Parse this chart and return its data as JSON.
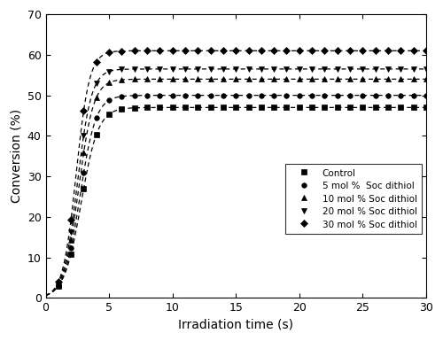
{
  "title": "",
  "xlabel": "Irradiation time (s)",
  "ylabel": "Conversion (%)",
  "xlim": [
    0,
    30
  ],
  "ylim": [
    0,
    70
  ],
  "xticks": [
    0,
    5,
    10,
    15,
    20,
    25,
    30
  ],
  "yticks": [
    0,
    10,
    20,
    30,
    40,
    50,
    60,
    70
  ],
  "series": [
    {
      "label": "Control",
      "marker": "s",
      "color": "#000000",
      "plateau": 47.0,
      "k": 1.5,
      "t0": 2.8
    },
    {
      "label": "5 mol %  Soc dithiol",
      "marker": "o",
      "color": "#000000",
      "plateau": 50.0,
      "k": 1.6,
      "t0": 2.7
    },
    {
      "label": "10 mol % Soc dithiol",
      "marker": "^",
      "color": "#000000",
      "plateau": 54.0,
      "k": 1.7,
      "t0": 2.6
    },
    {
      "label": "20 mol % Soc dithiol",
      "marker": "v",
      "color": "#000000",
      "plateau": 56.5,
      "k": 1.8,
      "t0": 2.5
    },
    {
      "label": "30 mol % Soc dithiol",
      "marker": "D",
      "color": "#000000",
      "plateau": 61.0,
      "k": 1.9,
      "t0": 2.4
    }
  ],
  "background_color": "#ffffff",
  "figsize": [
    5.0,
    3.85
  ],
  "dpi": 100
}
